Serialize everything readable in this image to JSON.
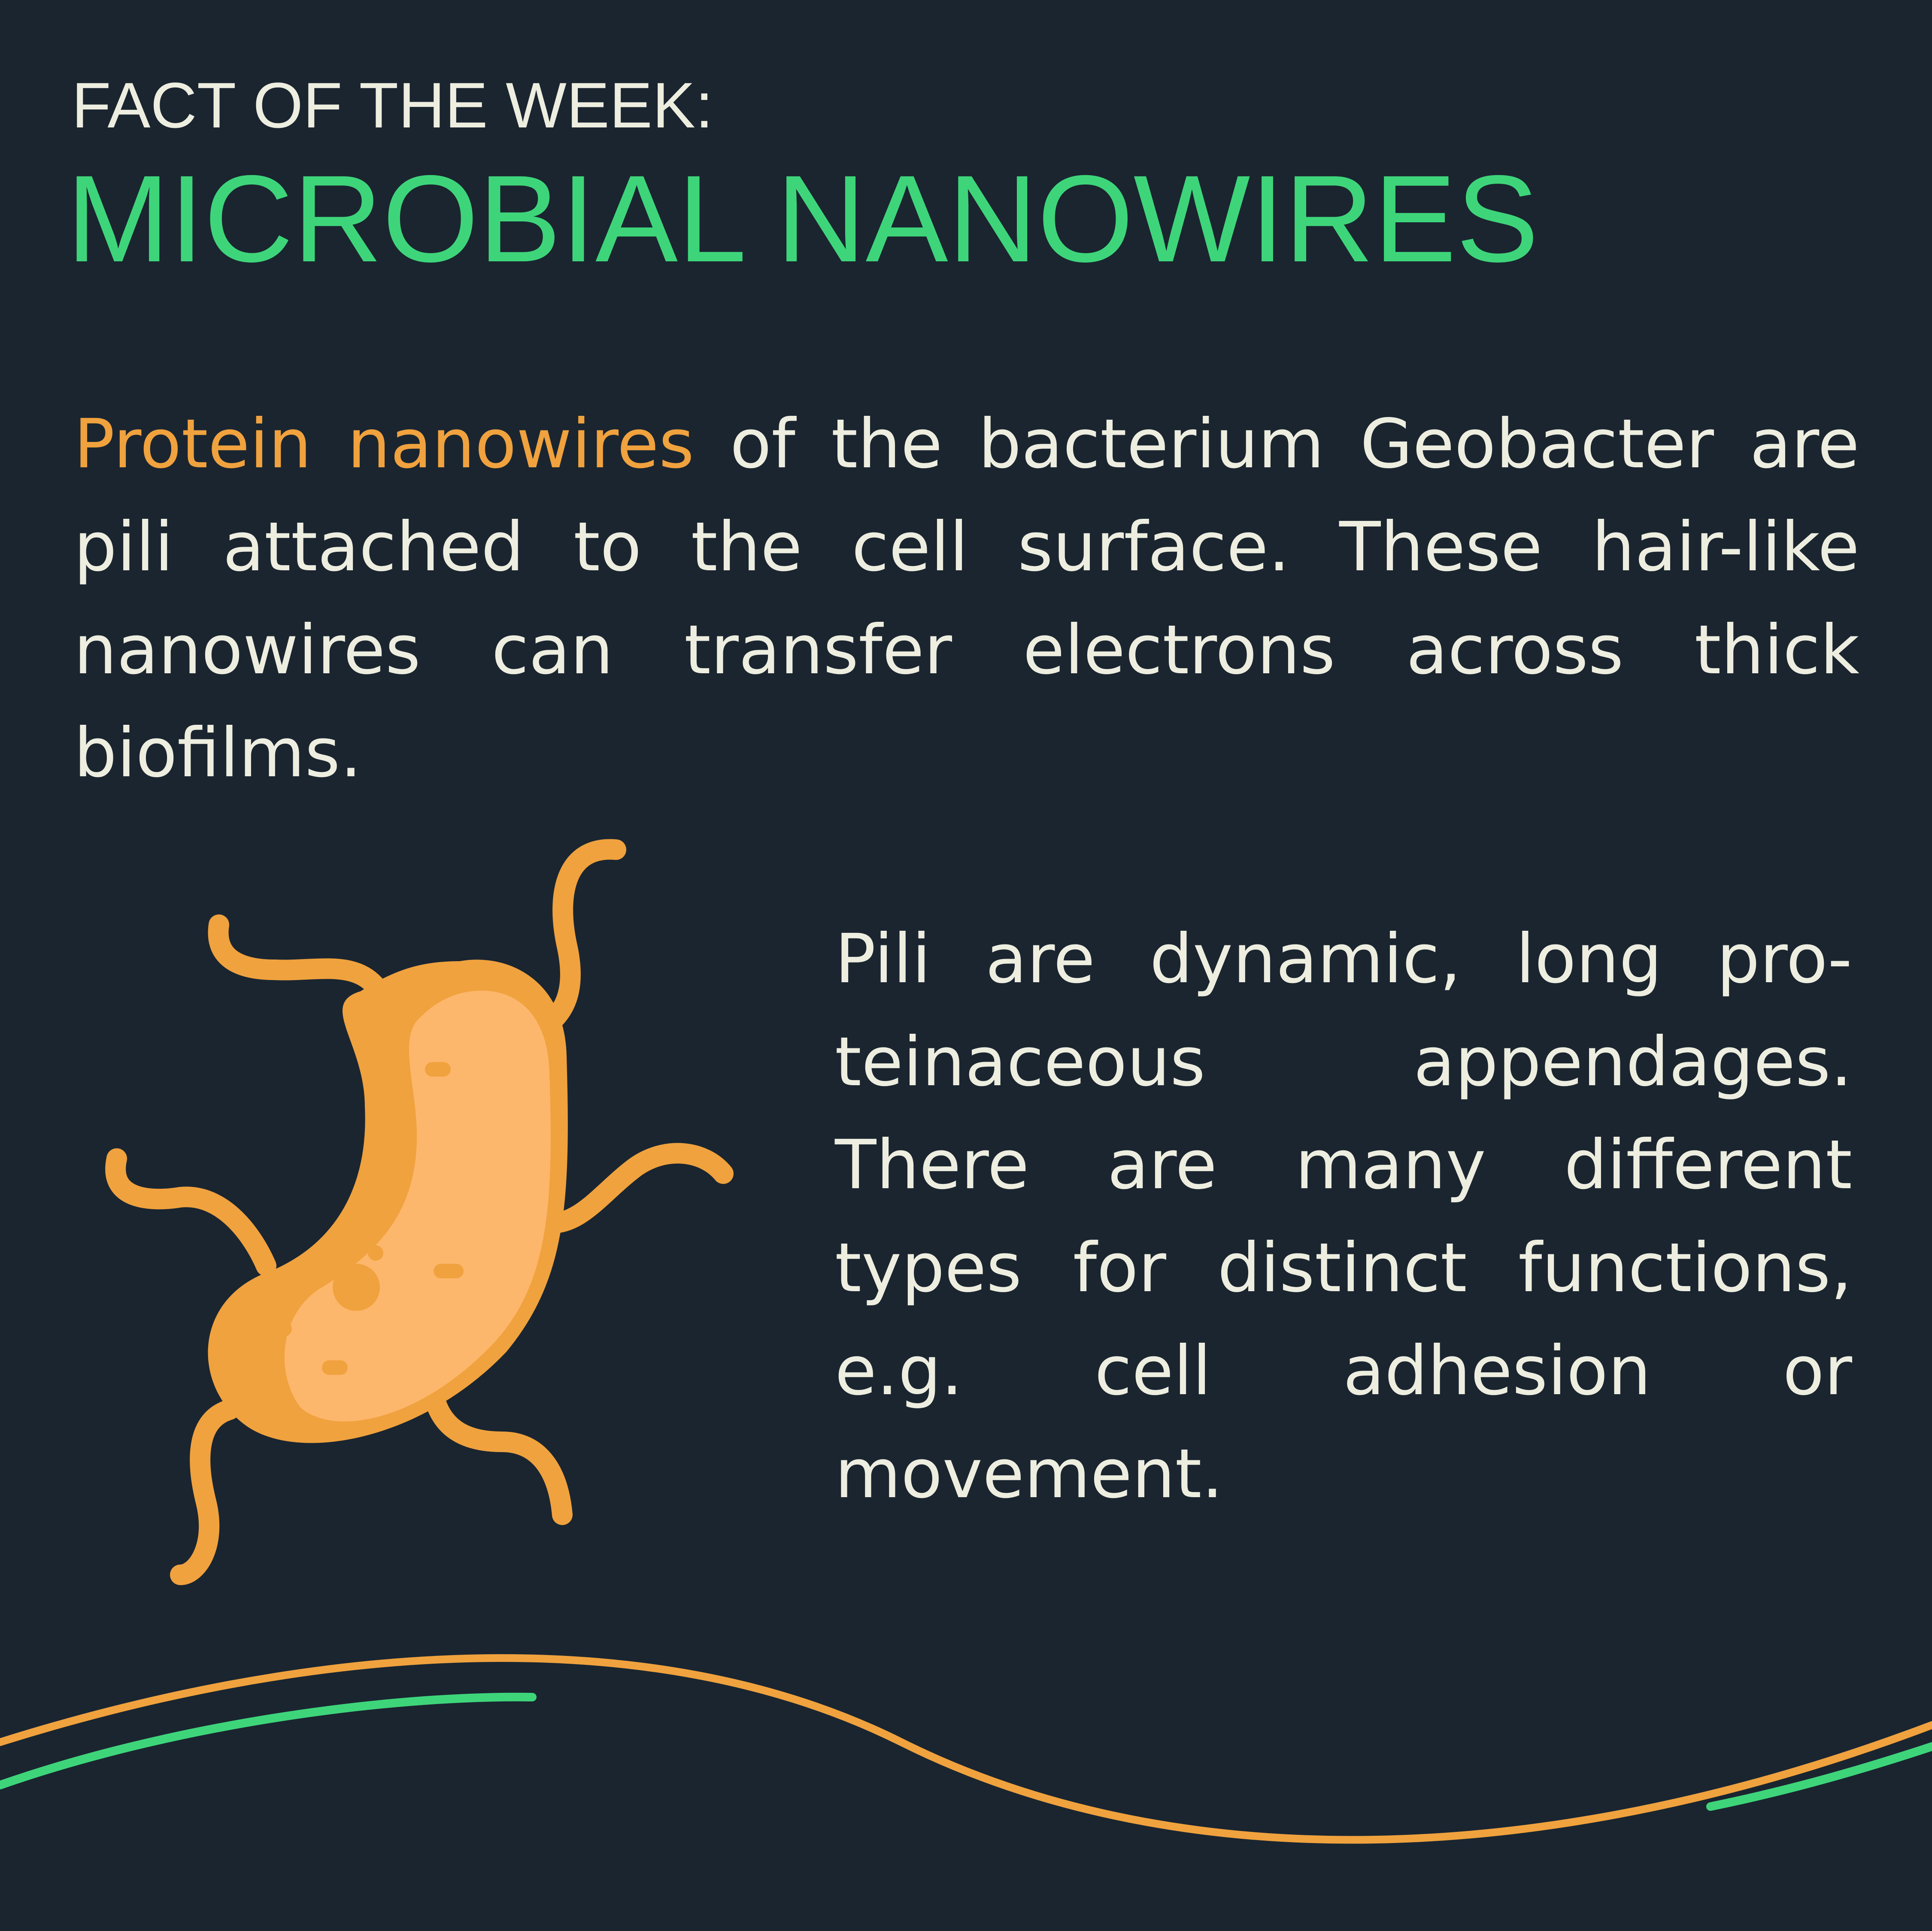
{
  "header": {
    "kicker": "FACT OF THE WEEK:",
    "title": "MICROBIAL NANOWIRES"
  },
  "paragraph1": {
    "highlight": "Protein nanowires",
    "rest": " of the bacterium Geobacter are pili attached to the cell surface. These hair-like nanowires can transfer electrons across thick biofilms."
  },
  "paragraph2": {
    "text": "Pili are dynamic, long pro­teinaceous appendages. There are many different types for distinct func­tions, e.g. cell adhesion or movement."
  },
  "illustration": {
    "icon": "bacterium-icon"
  },
  "colors": {
    "background": "#1a2530",
    "accent_green": "#3ed57a",
    "accent_orange": "#f0a23e",
    "cell_light": "#fdb76c",
    "text": "#eeeee0"
  }
}
